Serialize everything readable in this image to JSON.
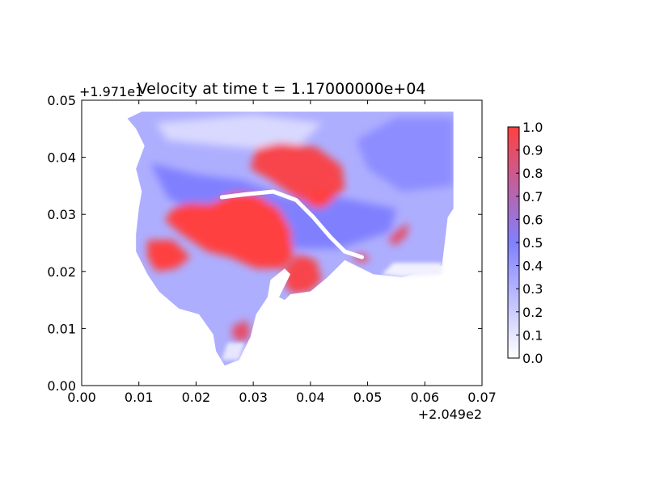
{
  "chart_data": {
    "type": "heatmap",
    "title": "Velocity at time t = 1.17000000e+04",
    "xlabel": "",
    "ylabel": "",
    "x_offset_label": "+2.049e2",
    "y_offset_label": "+1.971e1",
    "xlim": [
      0.0,
      0.07
    ],
    "ylim": [
      0.0,
      0.05
    ],
    "x_ticks": [
      "0.00",
      "0.01",
      "0.02",
      "0.03",
      "0.04",
      "0.05",
      "0.06",
      "0.07"
    ],
    "y_ticks": [
      "0.00",
      "0.01",
      "0.02",
      "0.03",
      "0.04",
      "0.05"
    ],
    "colorbar": {
      "range": [
        0.0,
        1.0
      ],
      "ticks": [
        "0.0",
        "0.1",
        "0.2",
        "0.3",
        "0.4",
        "0.5",
        "0.6",
        "0.7",
        "0.8",
        "0.9",
        "1.0"
      ],
      "colors": {
        "low": "#ffffff",
        "mid": "#8080ff",
        "high": "#ff4040"
      }
    },
    "field": {
      "domain_outline": [
        [
          0.008,
          0.0468
        ],
        [
          0.0105,
          0.048
        ],
        [
          0.065,
          0.048
        ],
        [
          0.065,
          0.031
        ],
        [
          0.064,
          0.0295
        ],
        [
          0.063,
          0.021
        ],
        [
          0.056,
          0.019
        ],
        [
          0.051,
          0.0195
        ],
        [
          0.046,
          0.022
        ],
        [
          0.043,
          0.019
        ],
        [
          0.04,
          0.0165
        ],
        [
          0.0365,
          0.016
        ],
        [
          0.0355,
          0.015
        ],
        [
          0.0345,
          0.0155
        ],
        [
          0.0365,
          0.0195
        ],
        [
          0.0355,
          0.0205
        ],
        [
          0.033,
          0.0185
        ],
        [
          0.0325,
          0.0155
        ],
        [
          0.0305,
          0.0125
        ],
        [
          0.0295,
          0.0085
        ],
        [
          0.0275,
          0.0045
        ],
        [
          0.025,
          0.0035
        ],
        [
          0.0235,
          0.006
        ],
        [
          0.023,
          0.009
        ],
        [
          0.0205,
          0.0125
        ],
        [
          0.017,
          0.0135
        ],
        [
          0.0135,
          0.0165
        ],
        [
          0.0115,
          0.0195
        ],
        [
          0.0095,
          0.0235
        ],
        [
          0.0095,
          0.0265
        ],
        [
          0.01,
          0.031
        ],
        [
          0.0105,
          0.034
        ],
        [
          0.0095,
          0.038
        ],
        [
          0.011,
          0.042
        ],
        [
          0.0095,
          0.045
        ]
      ],
      "channel_path": [
        [
          0.0245,
          0.033
        ],
        [
          0.0285,
          0.0335
        ],
        [
          0.0335,
          0.034
        ],
        [
          0.0375,
          0.0325
        ],
        [
          0.0405,
          0.0295
        ],
        [
          0.0435,
          0.026
        ],
        [
          0.046,
          0.0235
        ],
        [
          0.049,
          0.0225
        ]
      ],
      "regions": [
        {
          "value": 0.15,
          "points": [
            [
              0.013,
              0.046
            ],
            [
              0.03,
              0.0475
            ],
            [
              0.042,
              0.046
            ],
            [
              0.037,
              0.041
            ],
            [
              0.025,
              0.042
            ],
            [
              0.015,
              0.043
            ]
          ]
        },
        {
          "value": 0.45,
          "points": [
            [
              0.055,
              0.047
            ],
            [
              0.065,
              0.047
            ],
            [
              0.065,
              0.035
            ],
            [
              0.056,
              0.034
            ],
            [
              0.05,
              0.038
            ],
            [
              0.048,
              0.043
            ]
          ]
        },
        {
          "value": 0.5,
          "points": [
            [
              0.012,
              0.039
            ],
            [
              0.02,
              0.037
            ],
            [
              0.028,
              0.036
            ],
            [
              0.036,
              0.033
            ],
            [
              0.045,
              0.033
            ],
            [
              0.055,
              0.031
            ],
            [
              0.054,
              0.027
            ],
            [
              0.045,
              0.024
            ],
            [
              0.035,
              0.024
            ],
            [
              0.025,
              0.027
            ],
            [
              0.015,
              0.033
            ]
          ]
        },
        {
          "value": 0.97,
          "points": [
            [
              0.0305,
              0.0415
            ],
            [
              0.0345,
              0.0425
            ],
            [
              0.041,
              0.0418
            ],
            [
              0.0455,
              0.0385
            ],
            [
              0.046,
              0.0345
            ],
            [
              0.043,
              0.032
            ],
            [
              0.038,
              0.0325
            ],
            [
              0.033,
              0.036
            ],
            [
              0.0295,
              0.038
            ]
          ]
        },
        {
          "value": 1.0,
          "points": [
            [
              0.0185,
              0.032
            ],
            [
              0.0225,
              0.0318
            ],
            [
              0.0265,
              0.0338
            ],
            [
              0.0305,
              0.0335
            ],
            [
              0.0345,
              0.031
            ],
            [
              0.0365,
              0.0275
            ],
            [
              0.037,
              0.0225
            ],
            [
              0.035,
              0.0205
            ],
            [
              0.0305,
              0.0205
            ],
            [
              0.026,
              0.0225
            ],
            [
              0.022,
              0.0235
            ],
            [
              0.0175,
              0.0265
            ],
            [
              0.0145,
              0.029
            ],
            [
              0.016,
              0.031
            ]
          ]
        },
        {
          "value": 1.0,
          "points": [
            [
              0.0115,
              0.0255
            ],
            [
              0.016,
              0.0255
            ],
            [
              0.019,
              0.0225
            ],
            [
              0.0165,
              0.0205
            ],
            [
              0.013,
              0.02
            ],
            [
              0.0115,
              0.0225
            ]
          ]
        },
        {
          "value": 0.97,
          "points": [
            [
              0.0355,
              0.0205
            ],
            [
              0.038,
              0.023
            ],
            [
              0.041,
              0.022
            ],
            [
              0.042,
              0.0185
            ],
            [
              0.04,
              0.0165
            ],
            [
              0.037,
              0.016
            ],
            [
              0.0355,
              0.0175
            ]
          ]
        },
        {
          "value": 1.0,
          "points": [
            [
              0.0395,
              0.034
            ],
            [
              0.0425,
              0.0345
            ],
            [
              0.044,
              0.0325
            ],
            [
              0.042,
              0.031
            ],
            [
              0.0395,
              0.0315
            ]
          ]
        },
        {
          "value": 0.9,
          "points": [
            [
              0.0265,
              0.0105
            ],
            [
              0.029,
              0.0115
            ],
            [
              0.0295,
              0.0085
            ],
            [
              0.0275,
              0.0075
            ],
            [
              0.0262,
              0.009
            ]
          ]
        },
        {
          "value": 0.92,
          "points": [
            [
              0.047,
              0.0225
            ],
            [
              0.049,
              0.0232
            ],
            [
              0.0505,
              0.0222
            ],
            [
              0.049,
              0.0215
            ]
          ]
        },
        {
          "value": 0.9,
          "points": [
            [
              0.0535,
              0.0255
            ],
            [
              0.0555,
              0.0275
            ],
            [
              0.0572,
              0.0285
            ],
            [
              0.0568,
              0.0262
            ],
            [
              0.0548,
              0.0245
            ]
          ]
        }
      ],
      "fade_regions": [
        {
          "value": 0.06,
          "points": [
            [
              0.0545,
              0.0215
            ],
            [
              0.063,
              0.0215
            ],
            [
              0.063,
              0.0195
            ],
            [
              0.056,
              0.019
            ],
            [
              0.0525,
              0.0195
            ]
          ]
        },
        {
          "value": 0.1,
          "points": [
            [
              0.0245,
              0.0045
            ],
            [
              0.0275,
              0.0045
            ],
            [
              0.0285,
              0.0075
            ],
            [
              0.0255,
              0.0075
            ]
          ]
        }
      ]
    }
  }
}
